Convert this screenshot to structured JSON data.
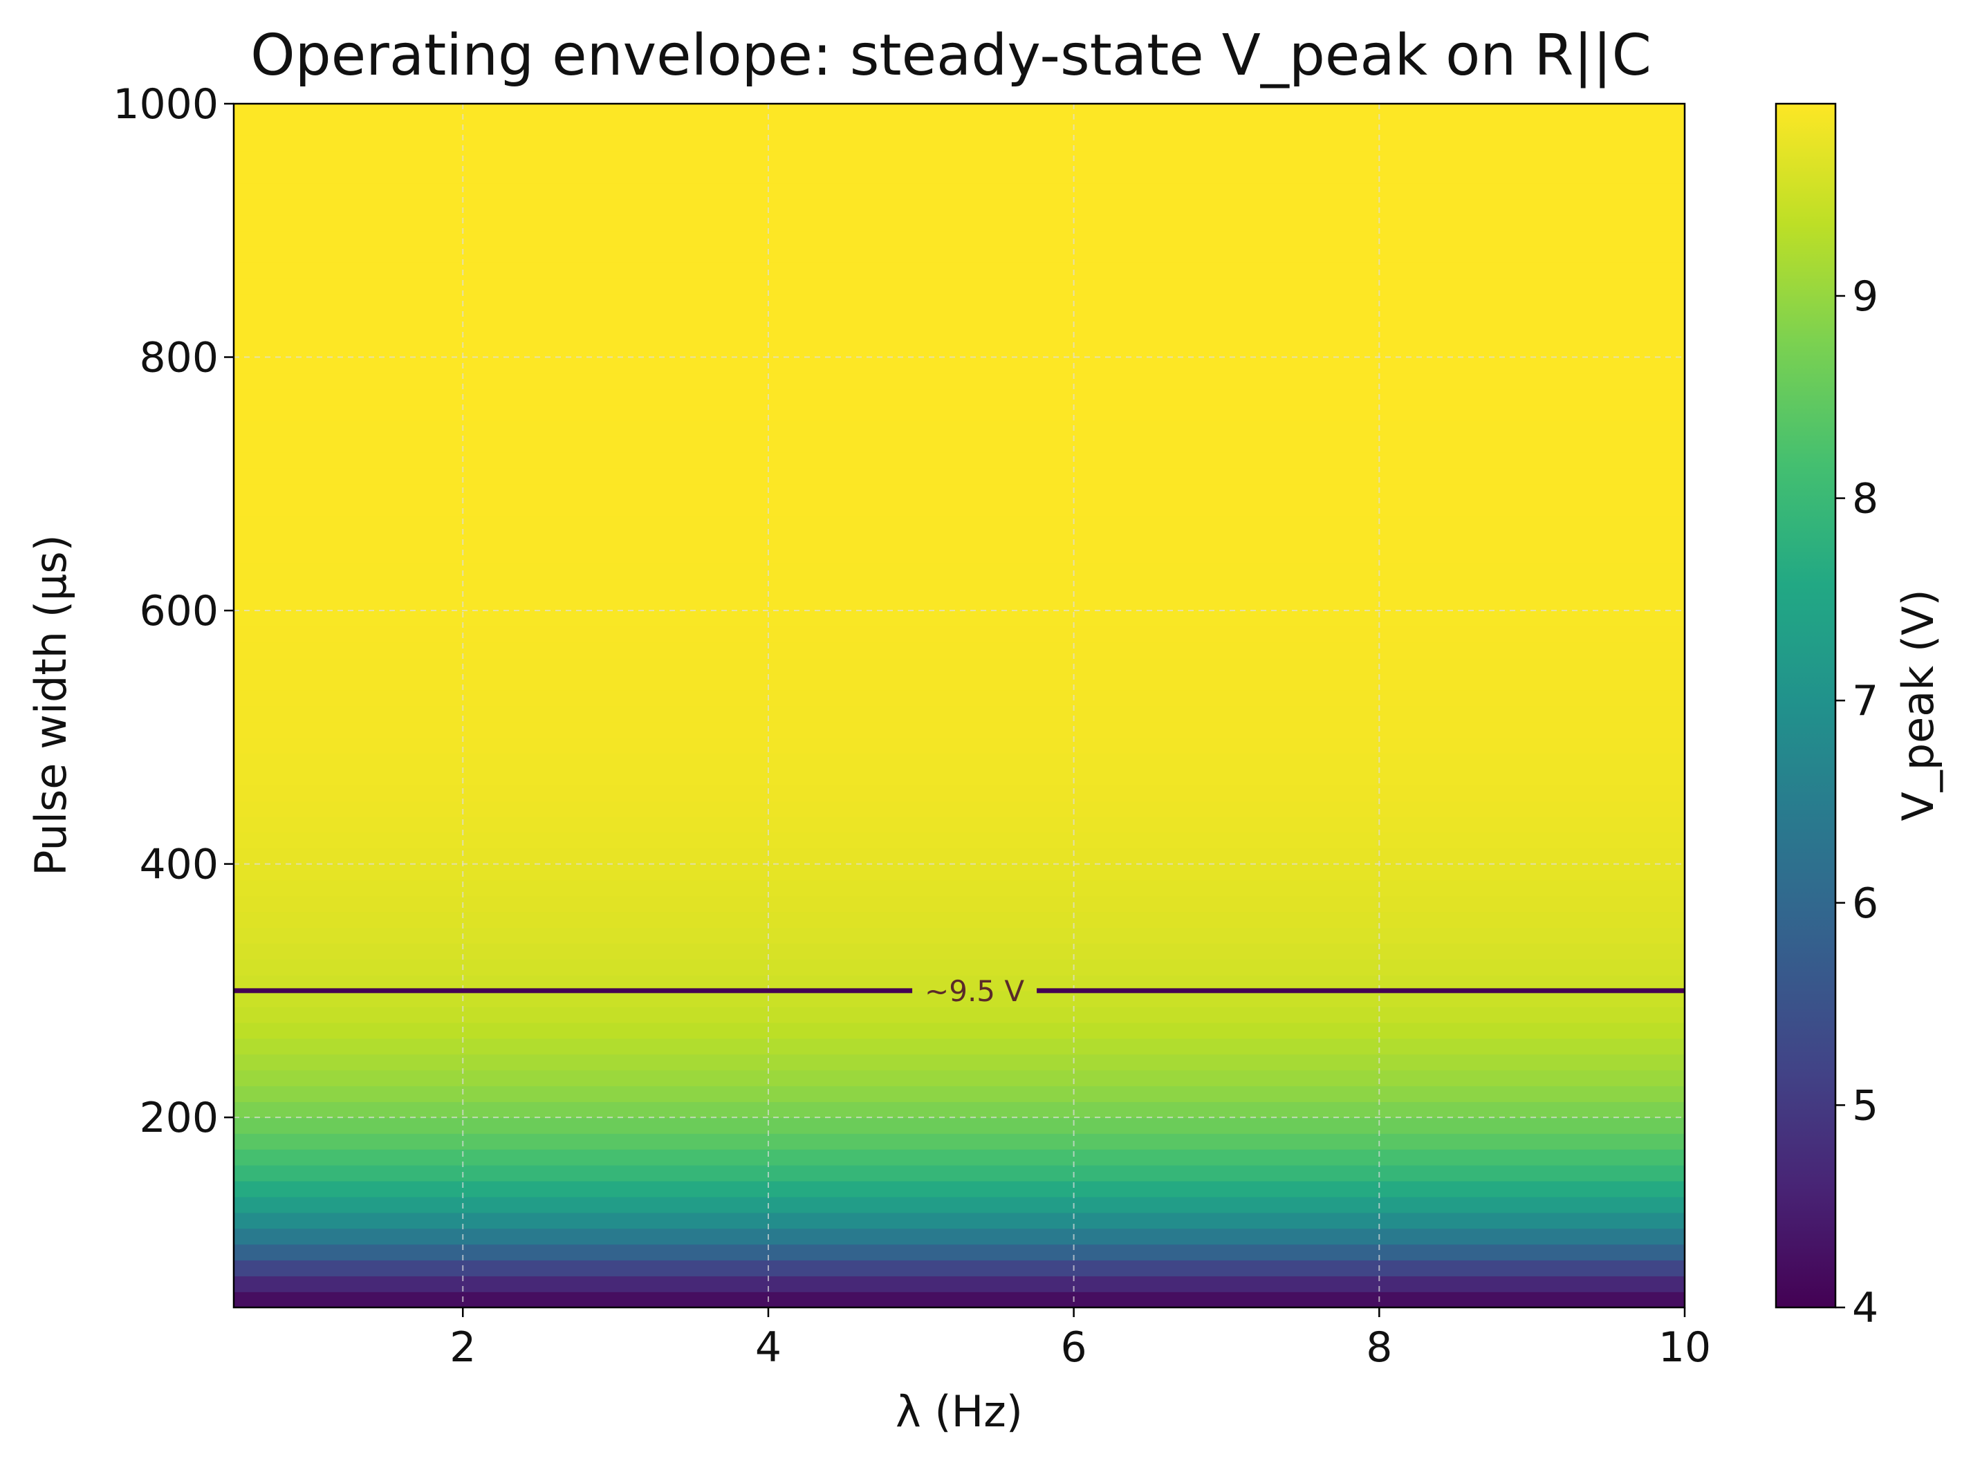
{
  "chart_data": {
    "type": "heatmap",
    "title": "Operating envelope: steady-state V_peak on R||C",
    "xlabel": "λ (Hz)",
    "ylabel": "Pulse width (µs)",
    "xlim": [
      0.5,
      10
    ],
    "ylim": [
      50,
      1000
    ],
    "x_ticks": [
      2,
      4,
      6,
      8,
      10
    ],
    "y_ticks": [
      200,
      400,
      600,
      800,
      1000
    ],
    "grid": true,
    "colormap": "viridis",
    "colorbar": {
      "label": "V_peak (V)",
      "range": [
        4.0,
        9.95
      ],
      "ticks": [
        4,
        5,
        6,
        7,
        8,
        9
      ]
    },
    "profile": {
      "description": "V_peak depends on pulse width only (constant across λ)",
      "pulse_width_us": [
        50,
        75,
        100,
        125,
        150,
        175,
        200,
        225,
        250,
        275,
        300,
        350,
        400,
        450,
        500,
        600,
        700,
        800,
        1000
      ],
      "v_peak_V": [
        4.0,
        4.9,
        6.2,
        7.1,
        7.8,
        8.3,
        8.7,
        9.0,
        9.2,
        9.4,
        9.5,
        9.65,
        9.75,
        9.82,
        9.87,
        9.92,
        9.94,
        9.95,
        9.95
      ]
    },
    "contour": {
      "level": 9.5,
      "label": "~9.5 V",
      "pulse_width_us": 300,
      "color": "#440154"
    }
  }
}
